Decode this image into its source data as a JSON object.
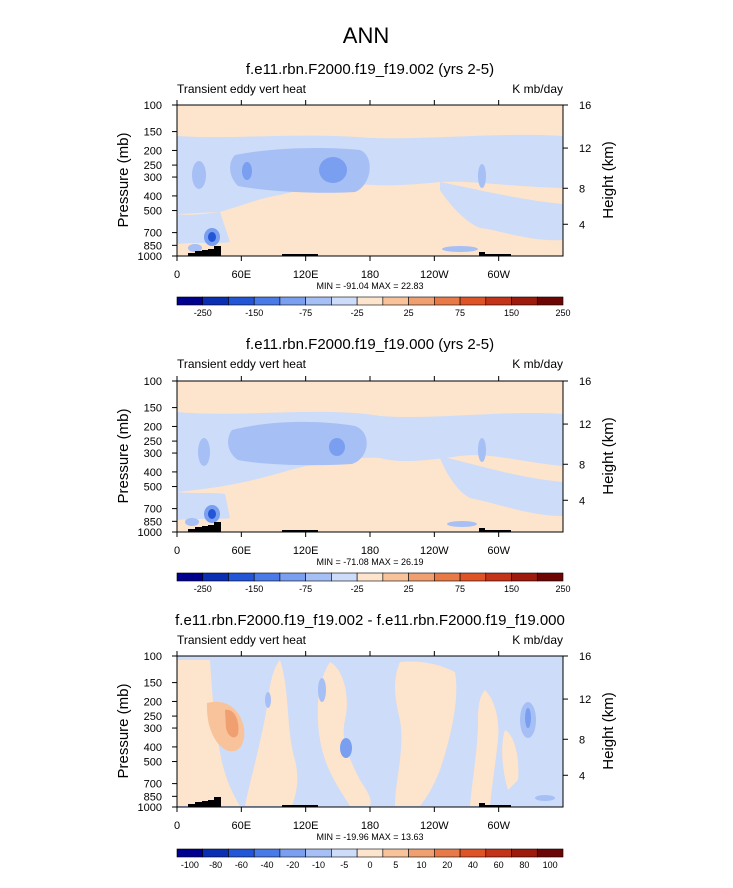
{
  "page_title": "ANN",
  "chart_data": [
    {
      "type": "heatmap",
      "title": "f.e11.rbn.F2000.f19_f19.002 (yrs 2-5)",
      "left_label": "Transient eddy vert heat",
      "right_label": "K mb/day",
      "ylabel": "Pressure (mb)",
      "y2label": "Height (km)",
      "xticks": [
        "0",
        "60E",
        "120E",
        "180",
        "120W",
        "60W"
      ],
      "yticks": [
        "100",
        "150",
        "200",
        "250",
        "300",
        "400",
        "500",
        "700",
        "850",
        "1000"
      ],
      "y2ticks": [
        "16",
        "12",
        "8",
        "4"
      ],
      "stats": "MIN = -91.04  MAX = 22.83",
      "colorbar_levels": [
        "-250",
        "-150",
        "-75",
        "-25",
        "25",
        "75",
        "150",
        "250"
      ]
    },
    {
      "type": "heatmap",
      "title": "f.e11.rbn.F2000.f19_f19.000 (yrs 2-5)",
      "left_label": "Transient eddy vert heat",
      "right_label": "K mb/day",
      "ylabel": "Pressure (mb)",
      "y2label": "Height (km)",
      "xticks": [
        "0",
        "60E",
        "120E",
        "180",
        "120W",
        "60W"
      ],
      "yticks": [
        "100",
        "150",
        "200",
        "250",
        "300",
        "400",
        "500",
        "700",
        "850",
        "1000"
      ],
      "y2ticks": [
        "16",
        "12",
        "8",
        "4"
      ],
      "stats": "MIN = -71.08  MAX = 26.19",
      "colorbar_levels": [
        "-250",
        "-150",
        "-75",
        "-25",
        "25",
        "75",
        "150",
        "250"
      ]
    },
    {
      "type": "heatmap",
      "title": "f.e11.rbn.F2000.f19_f19.002 - f.e11.rbn.F2000.f19_f19.000",
      "left_label": "Transient eddy vert heat",
      "right_label": "K mb/day",
      "ylabel": "Pressure (mb)",
      "y2label": "Height (km)",
      "xticks": [
        "0",
        "60E",
        "120E",
        "180",
        "120W",
        "60W"
      ],
      "yticks": [
        "100",
        "150",
        "200",
        "250",
        "300",
        "400",
        "500",
        "700",
        "850",
        "1000"
      ],
      "y2ticks": [
        "16",
        "12",
        "8",
        "4"
      ],
      "stats": "MIN = -19.96  MAX = 13.63",
      "colorbar_levels": [
        "-100",
        "-80",
        "-60",
        "-40",
        "-20",
        "-10",
        "-5",
        "0",
        "5",
        "10",
        "20",
        "40",
        "60",
        "80",
        "100"
      ]
    }
  ],
  "palette": [
    "#00008f",
    "#0a2fb3",
    "#2356d6",
    "#4a7ae8",
    "#7a9ff0",
    "#a6bff5",
    "#cddcf8",
    "#fde4cc",
    "#f8c39a",
    "#f0a070",
    "#e87a48",
    "#de5427",
    "#c33418",
    "#9e1a0c",
    "#6e0505"
  ]
}
